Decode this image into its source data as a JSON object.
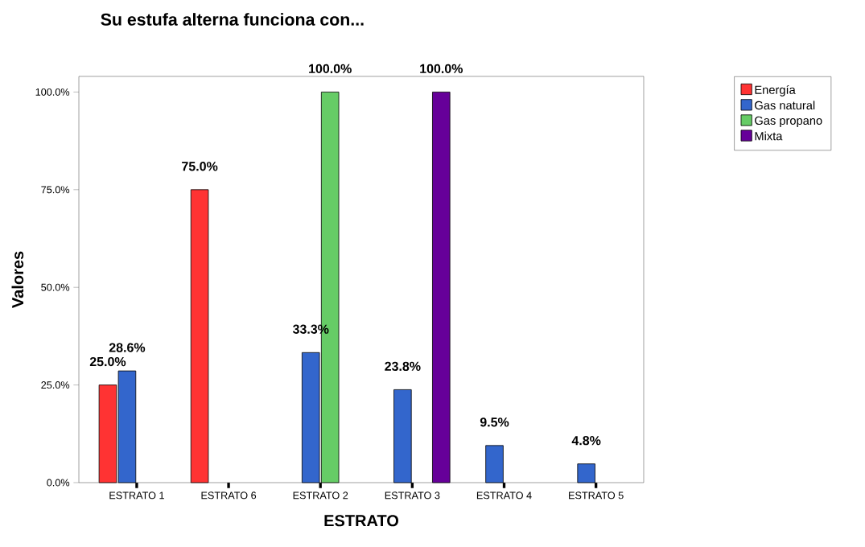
{
  "chart_data": {
    "type": "bar",
    "title": "Su estufa alterna funciona con...",
    "xlabel": "ESTRATO",
    "ylabel": "Valores",
    "categories": [
      "ESTRATO 1",
      "ESTRATO 6",
      "ESTRATO 2",
      "ESTRATO 3",
      "ESTRATO 4",
      "ESTRATO 5"
    ],
    "series": [
      {
        "name": "Energía",
        "color": "#ff3333",
        "values": [
          25.0,
          75.0,
          null,
          null,
          null,
          null
        ],
        "value_labels": [
          "25.0%",
          "75.0%",
          null,
          null,
          null,
          null
        ]
      },
      {
        "name": "Gas natural",
        "color": "#3366cc",
        "values": [
          28.6,
          null,
          33.3,
          23.8,
          9.5,
          4.8
        ],
        "value_labels": [
          "28.6%",
          null,
          "33.3%",
          "23.8%",
          "9.5%",
          "4.8%"
        ]
      },
      {
        "name": "Gas propano",
        "color": "#66cc66",
        "values": [
          null,
          null,
          100.0,
          null,
          null,
          null
        ],
        "value_labels": [
          null,
          null,
          "100.0%",
          null,
          null,
          null
        ]
      },
      {
        "name": "Mixta",
        "color": "#660099",
        "values": [
          null,
          null,
          null,
          100.0,
          null,
          null
        ],
        "value_labels": [
          null,
          null,
          null,
          "100.0%",
          null,
          null
        ]
      }
    ],
    "ylim": [
      0,
      104
    ],
    "yticks": [
      {
        "value": 0,
        "label": "0.0%"
      },
      {
        "value": 25,
        "label": "25.0%"
      },
      {
        "value": 50,
        "label": "50.0%"
      },
      {
        "value": 75,
        "label": "75.0%"
      },
      {
        "value": 100,
        "label": "100.0%"
      }
    ],
    "legend": "right"
  }
}
